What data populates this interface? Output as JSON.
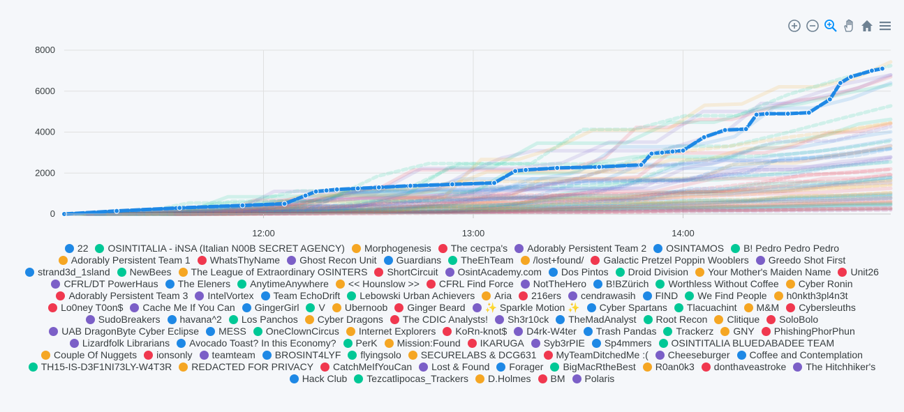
{
  "toolbar": {
    "icons": [
      "zoom-in-icon",
      "zoom-out-icon",
      "zoom-select-icon",
      "pan-hand-icon",
      "home-reset-icon",
      "menu-icon"
    ]
  },
  "chart_data": {
    "type": "line",
    "x_ticks": [
      "12:00",
      "13:00",
      "14:00"
    ],
    "y_ticks": [
      "0",
      "2000",
      "4000",
      "6000",
      "8000"
    ],
    "ylim": [
      0,
      8000
    ],
    "x_range_hours": [
      11.05,
      14.99
    ],
    "grid": true,
    "legend_position": "bottom",
    "highlighted_series": {
      "name": "22",
      "color": "#1e88e5",
      "x": [
        11.05,
        11.3,
        11.6,
        11.9,
        12.1,
        12.2,
        12.25,
        12.3,
        12.35,
        12.45,
        12.55,
        12.7,
        12.9,
        13.1,
        13.2,
        13.25,
        13.4,
        13.6,
        13.8,
        13.85,
        13.9,
        13.95,
        14.0,
        14.1,
        14.2,
        14.3,
        14.35,
        14.4,
        14.5,
        14.6,
        14.7,
        14.75,
        14.8,
        14.9,
        14.95
      ],
      "values": [
        0,
        150,
        300,
        420,
        500,
        900,
        1100,
        1150,
        1200,
        1250,
        1300,
        1380,
        1450,
        1520,
        2100,
        2150,
        2250,
        2300,
        2400,
        2950,
        3000,
        3050,
        3100,
        3750,
        4100,
        4150,
        4850,
        4900,
        4900,
        4950,
        5600,
        6400,
        6700,
        7000,
        7100
      ]
    },
    "series_colors": [
      "#1e88e5",
      "#00c896",
      "#f5a623",
      "#f0384f",
      "#7b5fc7"
    ],
    "legend": [
      {
        "name": "22",
        "color": "#1e88e5"
      },
      {
        "name": "OSINTITALIA - iNSA (Italian N00B SECRET AGENCY)",
        "color": "#00c896"
      },
      {
        "name": "Morphogenesis",
        "color": "#f5a623"
      },
      {
        "name": "The сестра's",
        "color": "#f0384f"
      },
      {
        "name": "Adorably Persistent Team 2",
        "color": "#7b5fc7"
      },
      {
        "name": "OSINTAMOS",
        "color": "#1e88e5"
      },
      {
        "name": "B! Pedro Pedro Pedro",
        "color": "#00c896"
      },
      {
        "name": "Adorably Persistent Team 1",
        "color": "#f5a623"
      },
      {
        "name": "WhatsThyName",
        "color": "#f0384f"
      },
      {
        "name": "Ghost Recon Unit",
        "color": "#7b5fc7"
      },
      {
        "name": "Guardians",
        "color": "#1e88e5"
      },
      {
        "name": "TheEhTeam",
        "color": "#00c896"
      },
      {
        "name": "/lost+found/",
        "color": "#f5a623"
      },
      {
        "name": "Galactic Pretzel Poppin Wooblers",
        "color": "#f0384f"
      },
      {
        "name": "Greedo Shot First",
        "color": "#7b5fc7"
      },
      {
        "name": "strand3d_1sland",
        "color": "#1e88e5"
      },
      {
        "name": "NewBees",
        "color": "#00c896"
      },
      {
        "name": "The League of Extraordinary OSINTERS",
        "color": "#f5a623"
      },
      {
        "name": "ShortCircuit",
        "color": "#f0384f"
      },
      {
        "name": "OsintAcademy.com",
        "color": "#7b5fc7"
      },
      {
        "name": "Dos Pintos",
        "color": "#1e88e5"
      },
      {
        "name": "Droid Division",
        "color": "#00c896"
      },
      {
        "name": "Your Mother's Maiden Name",
        "color": "#f5a623"
      },
      {
        "name": "Unit26",
        "color": "#f0384f"
      },
      {
        "name": "CFRL/DT PowerHaus",
        "color": "#7b5fc7"
      },
      {
        "name": "The Eleners",
        "color": "#1e88e5"
      },
      {
        "name": "AnytimeAnywhere",
        "color": "#00c896"
      },
      {
        "name": "<< Hounslow >>",
        "color": "#f5a623"
      },
      {
        "name": "CFRL Find Force",
        "color": "#f0384f"
      },
      {
        "name": "NotTheHero",
        "color": "#7b5fc7"
      },
      {
        "name": "B!BZürich",
        "color": "#1e88e5"
      },
      {
        "name": "Worthless Without Coffee",
        "color": "#00c896"
      },
      {
        "name": "Cyber Ronin",
        "color": "#f5a623"
      },
      {
        "name": "Adorably Persistent Team 3",
        "color": "#f0384f"
      },
      {
        "name": "IntelVortex",
        "color": "#7b5fc7"
      },
      {
        "name": "Team EchoDrift",
        "color": "#1e88e5"
      },
      {
        "name": "Lebowski Urban Achievers",
        "color": "#00c896"
      },
      {
        "name": "Aria",
        "color": "#f5a623"
      },
      {
        "name": "216ers",
        "color": "#f0384f"
      },
      {
        "name": "cendrawasih",
        "color": "#7b5fc7"
      },
      {
        "name": "FIND",
        "color": "#1e88e5"
      },
      {
        "name": "We Find People",
        "color": "#00c896"
      },
      {
        "name": "h0nkth3pl4n3t",
        "color": "#f5a623"
      },
      {
        "name": "Lo0ney T0on$",
        "color": "#f0384f"
      },
      {
        "name": "Cache Me If You Can",
        "color": "#7b5fc7"
      },
      {
        "name": "GingerGirl",
        "color": "#1e88e5"
      },
      {
        "name": "V",
        "color": "#00c896"
      },
      {
        "name": "Ubernoob",
        "color": "#f5a623"
      },
      {
        "name": "Ginger Beard",
        "color": "#f0384f"
      },
      {
        "name": "✨ Sparkle Motion ✨",
        "color": "#7b5fc7"
      },
      {
        "name": "Cyber Spartans",
        "color": "#1e88e5"
      },
      {
        "name": "Tlacuachint",
        "color": "#00c896"
      },
      {
        "name": "M&M",
        "color": "#f5a623"
      },
      {
        "name": "Cybersleuths",
        "color": "#f0384f"
      },
      {
        "name": "SudoBreakers",
        "color": "#7b5fc7"
      },
      {
        "name": "havana^2",
        "color": "#1e88e5"
      },
      {
        "name": "Los Panchos",
        "color": "#00c896"
      },
      {
        "name": "Cyber Dragons",
        "color": "#f5a623"
      },
      {
        "name": "The CDIC Analysts!",
        "color": "#f0384f"
      },
      {
        "name": "Sh3r10ck",
        "color": "#7b5fc7"
      },
      {
        "name": "TheMadAnalyst",
        "color": "#1e88e5"
      },
      {
        "name": "Root Recon",
        "color": "#00c896"
      },
      {
        "name": "Clitique",
        "color": "#f5a623"
      },
      {
        "name": "SoloBolo",
        "color": "#f0384f"
      },
      {
        "name": "UAB DragonByte Cyber Eclipse",
        "color": "#7b5fc7"
      },
      {
        "name": "MESS",
        "color": "#1e88e5"
      },
      {
        "name": "OneClownCircus",
        "color": "#00c896"
      },
      {
        "name": "Internet Explorers",
        "color": "#f5a623"
      },
      {
        "name": "KoRn-knot$",
        "color": "#f0384f"
      },
      {
        "name": "D4rk-W4ter",
        "color": "#7b5fc7"
      },
      {
        "name": "Trash Pandas",
        "color": "#1e88e5"
      },
      {
        "name": "Trackerz",
        "color": "#00c896"
      },
      {
        "name": "GNY",
        "color": "#f5a623"
      },
      {
        "name": "PhishingPhorPhun",
        "color": "#f0384f"
      },
      {
        "name": "Lizardfolk Librarians",
        "color": "#7b5fc7"
      },
      {
        "name": "Avocado Toast? In this Economy?",
        "color": "#1e88e5"
      },
      {
        "name": "PerK",
        "color": "#00c896"
      },
      {
        "name": "Mission:Found",
        "color": "#f5a623"
      },
      {
        "name": "IKARUGA",
        "color": "#f0384f"
      },
      {
        "name": "Syb3rPIE",
        "color": "#7b5fc7"
      },
      {
        "name": "Sp4mmers",
        "color": "#1e88e5"
      },
      {
        "name": "OSINTITALIA BLUEDABADEE TEAM",
        "color": "#00c896"
      },
      {
        "name": "Couple Of Nuggets",
        "color": "#f5a623"
      },
      {
        "name": "ionsonly",
        "color": "#f0384f"
      },
      {
        "name": "teamteam",
        "color": "#7b5fc7"
      },
      {
        "name": "BROSINT4LYF",
        "color": "#1e88e5"
      },
      {
        "name": "flyingsolo",
        "color": "#00c896"
      },
      {
        "name": "SECURELABS & DCG631",
        "color": "#f5a623"
      },
      {
        "name": "MyTeamDitchedMe :(",
        "color": "#f0384f"
      },
      {
        "name": "Cheeseburger",
        "color": "#7b5fc7"
      },
      {
        "name": "Coffee and Contemplation",
        "color": "#1e88e5"
      },
      {
        "name": "TH15-IS-D3F1NI73LY-W4T3R",
        "color": "#00c896"
      },
      {
        "name": "REDACTED FOR PRIVACY",
        "color": "#f5a623"
      },
      {
        "name": "CatchMeIfYouCan",
        "color": "#f0384f"
      },
      {
        "name": "Lost & Found",
        "color": "#7b5fc7"
      },
      {
        "name": "Forager",
        "color": "#1e88e5"
      },
      {
        "name": "BigMacRtheBest",
        "color": "#00c896"
      },
      {
        "name": "R0an0k3",
        "color": "#f5a623"
      },
      {
        "name": "donthaveastroke",
        "color": "#f0384f"
      },
      {
        "name": "The Hitchhiker's",
        "color": "#7b5fc7"
      },
      {
        "name": "Hack Club",
        "color": "#1e88e5"
      },
      {
        "name": "Tezcatlipocas_Trackers",
        "color": "#00c896"
      },
      {
        "name": "D.Holmes",
        "color": "#f5a623"
      },
      {
        "name": "BM",
        "color": "#f0384f"
      },
      {
        "name": "Polaris",
        "color": "#7b5fc7"
      }
    ]
  }
}
